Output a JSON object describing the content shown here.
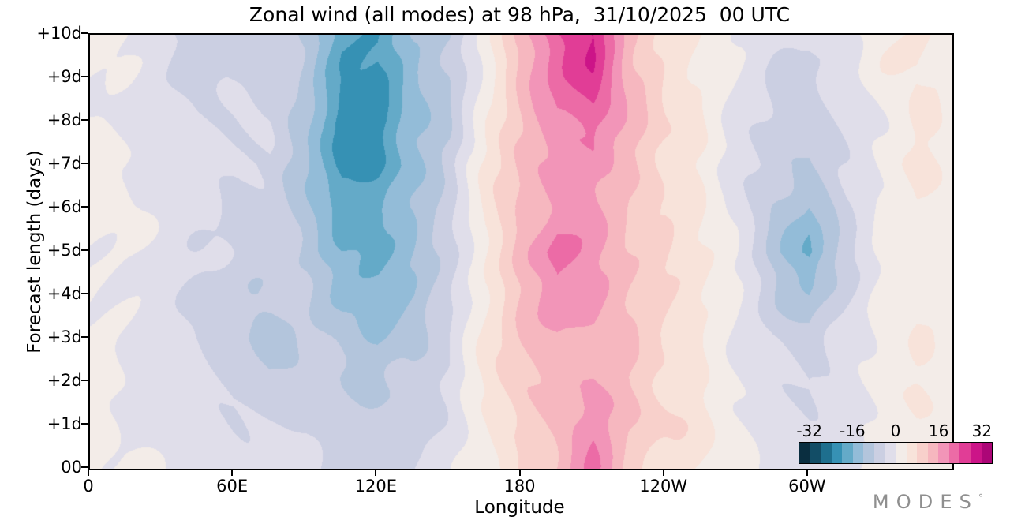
{
  "title": "Zonal wind (all modes) at 98 hPa,  31/10/2025  00 UTC",
  "axes": {
    "ylabel": "Forecast length (days)",
    "xlabel": "Longitude",
    "yticks": [
      {
        "day": 0,
        "label": "00"
      },
      {
        "day": 1,
        "label": "+1d"
      },
      {
        "day": 2,
        "label": "+2d"
      },
      {
        "day": 3,
        "label": "+3d"
      },
      {
        "day": 4,
        "label": "+4d"
      },
      {
        "day": 5,
        "label": "+5d"
      },
      {
        "day": 6,
        "label": "+6d"
      },
      {
        "day": 7,
        "label": "+7d"
      },
      {
        "day": 8,
        "label": "+8d"
      },
      {
        "day": 9,
        "label": "+9d"
      },
      {
        "day": 10,
        "label": "+10d"
      }
    ],
    "xticks": [
      {
        "lon": 0,
        "label": "0"
      },
      {
        "lon": 60,
        "label": "60E"
      },
      {
        "lon": 120,
        "label": "120E"
      },
      {
        "lon": 180,
        "label": "180"
      },
      {
        "lon": 240,
        "label": "120W"
      },
      {
        "lon": 300,
        "label": "60W"
      }
    ]
  },
  "colorbar": {
    "min": -36,
    "max": 36,
    "ticks": [
      {
        "value": -32,
        "label": "-32"
      },
      {
        "value": -16,
        "label": "-16"
      },
      {
        "value": 0,
        "label": "0"
      },
      {
        "value": 16,
        "label": "16"
      },
      {
        "value": 32,
        "label": "32"
      }
    ]
  },
  "logo": {
    "text": "MODES",
    "mark": "°"
  },
  "chart_data": {
    "type": "heatmap",
    "title": "Zonal wind (all modes) at 98 hPa, 31/10/2025 00 UTC",
    "xlabel": "Longitude",
    "ylabel": "Forecast length (days)",
    "x_lon": [
      0,
      15,
      30,
      45,
      60,
      75,
      90,
      105,
      120,
      135,
      150,
      165,
      180,
      195,
      210,
      225,
      240,
      255,
      270,
      285,
      300,
      315,
      330,
      345,
      360
    ],
    "y_forecast_day": [
      0,
      1,
      2,
      3,
      4,
      5,
      6,
      7,
      8,
      9,
      10
    ],
    "values": [
      [
        1,
        0,
        -1,
        -2,
        -2,
        -2,
        -3,
        -4,
        -4,
        -3,
        -1,
        3,
        8,
        12,
        20,
        10,
        7,
        5,
        2,
        -1,
        -2,
        -1,
        2,
        2,
        1
      ],
      [
        1,
        0,
        -2,
        -3,
        -4,
        -4,
        -4,
        -6,
        -6,
        -5,
        -2,
        3,
        9,
        13,
        19,
        11,
        8,
        5,
        2,
        -2,
        -3,
        -1,
        2,
        3,
        1
      ],
      [
        1,
        -1,
        -3,
        -4,
        -6,
        -7,
        -5,
        -7,
        -8,
        -7,
        -3,
        4,
        10,
        14,
        16,
        12,
        8,
        5,
        1,
        -3,
        -5,
        -2,
        2,
        3,
        1
      ],
      [
        1,
        -1,
        -3,
        -5,
        -8,
        -9,
        -6,
        -9,
        -11,
        -9,
        -4,
        4,
        11,
        15,
        15,
        12,
        9,
        5,
        1,
        -4,
        -7,
        -3,
        1,
        3,
        1
      ],
      [
        1,
        -1,
        -3,
        -5,
        -8,
        -8,
        -8,
        -12,
        -14,
        -11,
        -5,
        5,
        12,
        20,
        16,
        12,
        9,
        5,
        0,
        -6,
        -11,
        -4,
        1,
        3,
        2
      ],
      [
        1,
        -1,
        -2,
        -4,
        -6,
        -6,
        -9,
        -15,
        -16,
        -12,
        -6,
        5,
        13,
        22,
        16,
        12,
        9,
        5,
        0,
        -8,
        -17,
        -5,
        0,
        3,
        2
      ],
      [
        1,
        0,
        -2,
        -3,
        -5,
        -4,
        -10,
        -17,
        -17,
        -12,
        -6,
        4,
        12,
        17,
        17,
        12,
        9,
        5,
        -1,
        -8,
        -13,
        -5,
        0,
        3,
        2
      ],
      [
        1,
        0,
        -2,
        -3,
        -4,
        -3,
        -11,
        -22,
        -20,
        -13,
        -6,
        4,
        12,
        17,
        18,
        12,
        8,
        4,
        -1,
        -6,
        -9,
        -4,
        1,
        4,
        2
      ],
      [
        1,
        -1,
        -3,
        -5,
        -5,
        -4,
        -10,
        -24,
        -22,
        -12,
        -7,
        3,
        12,
        19,
        22,
        13,
        8,
        4,
        -1,
        -5,
        -7,
        -3,
        1,
        4,
        2
      ],
      [
        1,
        -1,
        -4,
        -6,
        -6,
        -5,
        -9,
        -19,
        -20,
        -13,
        -8,
        2,
        12,
        22,
        26,
        14,
        8,
        4,
        0,
        -3,
        -5,
        -2,
        2,
        4,
        2
      ],
      [
        1,
        -1,
        -4,
        -6,
        -5,
        -4,
        -8,
        -17,
        -19,
        -12,
        -9,
        2,
        12,
        24,
        28,
        14,
        8,
        4,
        0,
        -3,
        -4,
        -2,
        2,
        4,
        2
      ]
    ],
    "level_min": -36,
    "level_max": 36,
    "levels_step": 4,
    "palette": [
      "#0a2e40",
      "#124d66",
      "#1e6f8e",
      "#3691b4",
      "#64aac8",
      "#93bcd8",
      "#b3c5dc",
      "#cbcfe2",
      "#e0deea",
      "#f3ece8",
      "#f8e3da",
      "#f8d0cb",
      "#f6b7bf",
      "#f295b8",
      "#ec6ba6",
      "#e13d96",
      "#cc1488",
      "#ac0677"
    ],
    "legend_position": "bottom-right",
    "grid": false
  }
}
